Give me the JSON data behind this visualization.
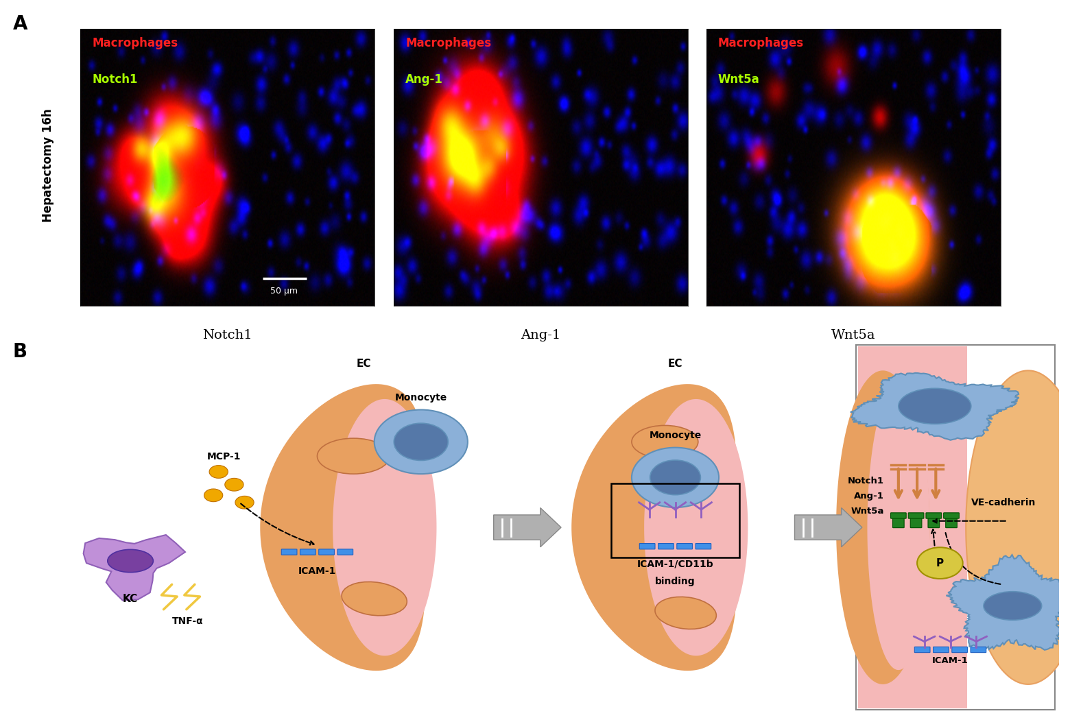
{
  "panel_A_label": "A",
  "panel_B_label": "B",
  "img1_title": "Notch1",
  "img2_title": "Ang-1",
  "img3_title": "Wnt5a",
  "y_label_A": "Hepatectomy 16h",
  "scale_bar_text": "50 μm",
  "img1_labels": [
    [
      "Macrophages",
      "#ff2020"
    ],
    [
      "Notch1",
      "#aaff00"
    ]
  ],
  "img2_labels": [
    [
      "Macrophages",
      "#ff2020"
    ],
    [
      "Ang-1",
      "#aaff00"
    ]
  ],
  "img3_labels": [
    [
      "Macrophages",
      "#ff2020"
    ],
    [
      "Wnt5a",
      "#aaff00"
    ]
  ],
  "bg_color": "#ffffff",
  "ec_pink": "#f5b8b8",
  "ec_orange": "#e8a060",
  "ec_orange_light": "#f0b878",
  "monocyte_blue": "#8bb0d8",
  "monocyte_blue_dark": "#6090b8",
  "monocyte_nucleus": "#5578a8",
  "kc_purple": "#c090d8",
  "kc_purple_dark": "#9060b8",
  "kc_nucleus": "#7840a0",
  "mcp1_color": "#f0a800",
  "icam_color": "#4090e8",
  "ve_cadherin_color": "#208020",
  "p_color": "#d8c840",
  "notch_arrow_color": "#d08040",
  "arrow_gray": "#b0b0b0",
  "text_color": "#000000",
  "zoom_box_bg": "#fff0e8",
  "zoom_box_right_bg": "#f5b8b8"
}
